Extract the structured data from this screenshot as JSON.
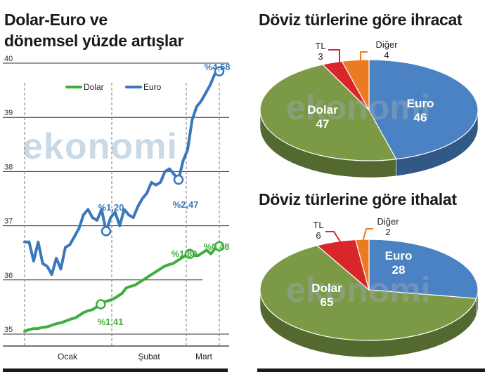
{
  "chart_data": [
    {
      "type": "line",
      "title_line1": "Dolar-Euro ve",
      "title_line2": "dönemsel yüzde artışlar",
      "xlabel": "",
      "ylabel": "",
      "ylim": [
        35,
        40
      ],
      "y_ticks": [
        "35",
        "36",
        "37",
        "38",
        "39",
        "40"
      ],
      "x_ticks": [
        "Ocak",
        "Şubat",
        "Mart"
      ],
      "legend_placement": "top-left",
      "grid": true,
      "series": [
        {
          "name": "Dolar",
          "color": "#3fae3b",
          "values": [
            35.05,
            35.08,
            35.1,
            35.1,
            35.12,
            35.13,
            35.15,
            35.18,
            35.2,
            35.22,
            35.25,
            35.28,
            35.3,
            35.35,
            35.4,
            35.43,
            35.45,
            35.5,
            35.55,
            35.6,
            35.62,
            35.65,
            35.7,
            35.75,
            35.85,
            35.88,
            35.9,
            35.95,
            36.0,
            36.05,
            36.1,
            36.15,
            36.2,
            36.25,
            36.28,
            36.3,
            36.35,
            36.4,
            36.45,
            36.48,
            36.45,
            36.45,
            36.5,
            36.55,
            36.48,
            36.58,
            36.62
          ]
        },
        {
          "name": "Euro",
          "color": "#3a78bd",
          "values": [
            36.7,
            36.7,
            36.35,
            36.7,
            36.3,
            36.25,
            36.1,
            36.4,
            36.2,
            36.6,
            36.65,
            36.8,
            36.95,
            37.2,
            37.3,
            37.15,
            37.1,
            37.3,
            36.9,
            37.15,
            37.25,
            37.0,
            37.3,
            37.2,
            37.15,
            37.35,
            37.5,
            37.6,
            37.8,
            37.75,
            37.8,
            38.0,
            38.05,
            37.95,
            37.85,
            38.2,
            38.4,
            38.95,
            39.2,
            39.3,
            39.45,
            39.6,
            39.8,
            39.85
          ]
        }
      ],
      "annotations": [
        {
          "text": "%1,20",
          "color": "#3a78bd"
        },
        {
          "text": "%2,47",
          "color": "#3a78bd"
        },
        {
          "text": "%4,58",
          "color": "#3a78bd"
        },
        {
          "text": "%1,41",
          "color": "#3fae3b"
        },
        {
          "text": "%1,80",
          "color": "#3fae3b"
        },
        {
          "text": "%0,48",
          "color": "#3fae3b"
        }
      ],
      "watermark": "ekonomi"
    },
    {
      "type": "pie",
      "title": "Döviz türlerine göre ihracat",
      "slices": [
        {
          "name": "Euro",
          "value": 46,
          "color": "#4a82c4"
        },
        {
          "name": "Dolar",
          "value": 47,
          "color": "#7c9a45"
        },
        {
          "name": "TL",
          "value": 3,
          "color": "#d8262a"
        },
        {
          "name": "Diğer",
          "value": 4,
          "color": "#ec7a22"
        }
      ],
      "watermark": "ekonomi"
    },
    {
      "type": "pie",
      "title": "Döviz türlerine göre ithalat",
      "slices": [
        {
          "name": "Euro",
          "value": 28,
          "color": "#4a82c4"
        },
        {
          "name": "Dolar",
          "value": 65,
          "color": "#7c9a45"
        },
        {
          "name": "TL",
          "value": 6,
          "color": "#d8262a"
        },
        {
          "name": "Diğer",
          "value": 2,
          "color": "#ec7a22"
        }
      ],
      "watermark": "ekonomi"
    }
  ]
}
